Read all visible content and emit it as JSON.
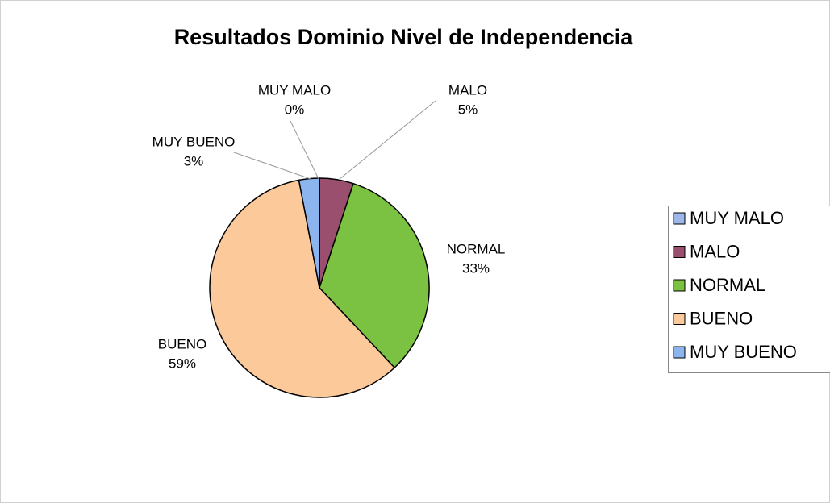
{
  "chart_data": {
    "type": "pie",
    "title": "Resultados Dominio Nivel de Independencia",
    "categories": [
      "MUY MALO",
      "MALO",
      "NORMAL",
      "BUENO",
      "MUY BUENO"
    ],
    "values": [
      0,
      5,
      33,
      59,
      3
    ],
    "value_labels": [
      "0%",
      "5%",
      "33%",
      "59%",
      "3%"
    ],
    "colors": [
      "#9db7ea",
      "#9b4f6e",
      "#7cc242",
      "#fcc99b",
      "#8cb4ee"
    ],
    "legend": "right"
  }
}
